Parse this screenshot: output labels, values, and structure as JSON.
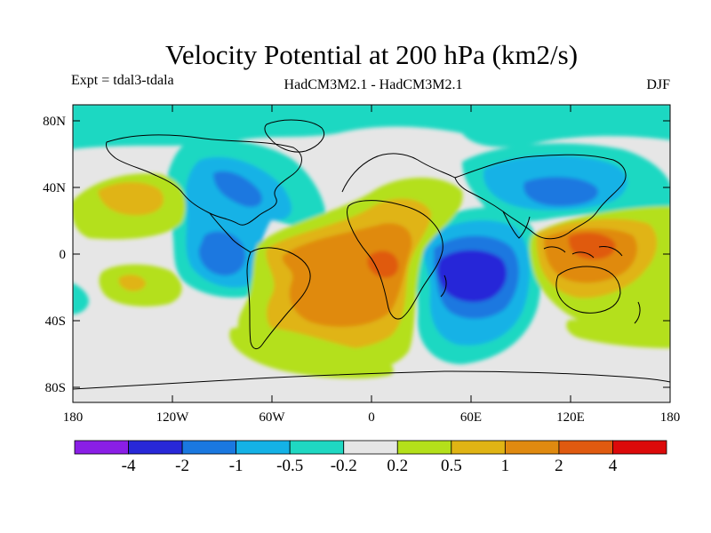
{
  "title": "Velocity Potential at 200 hPa (km2/s)",
  "experiment": "Expt = tdal3-tdala",
  "model_label": "HadCM3M2.1 - HadCM3M2.1",
  "season": "DJF",
  "lat_labels": [
    "80N",
    "40N",
    "0",
    "40S",
    "80S"
  ],
  "lon_labels": [
    "180",
    "120W",
    "60W",
    "0",
    "60E",
    "120E",
    "180"
  ],
  "colorbar": {
    "colors": [
      "#8a1ee6",
      "#2828d8",
      "#1a78e0",
      "#14b2e6",
      "#1fd8c2",
      "#e6e6e6",
      "#b4e01a",
      "#e0b414",
      "#e08a10",
      "#e05a10",
      "#dc0a0a"
    ],
    "labels": [
      "-4",
      "-2",
      "-1",
      "-0.5",
      "-0.2",
      "0.2",
      "0.5",
      "1",
      "2",
      "4"
    ]
  },
  "map_colors": {
    "neutral": "#e6e6e6",
    "neg1": "#1fd8c2",
    "neg2": "#14b2e6",
    "neg3": "#1a78e0",
    "neg4": "#2828d8",
    "pos1": "#b4e01a",
    "pos2": "#e0b414",
    "pos3": "#e08a10",
    "pos4": "#e05a10",
    "coast": "#000000"
  }
}
